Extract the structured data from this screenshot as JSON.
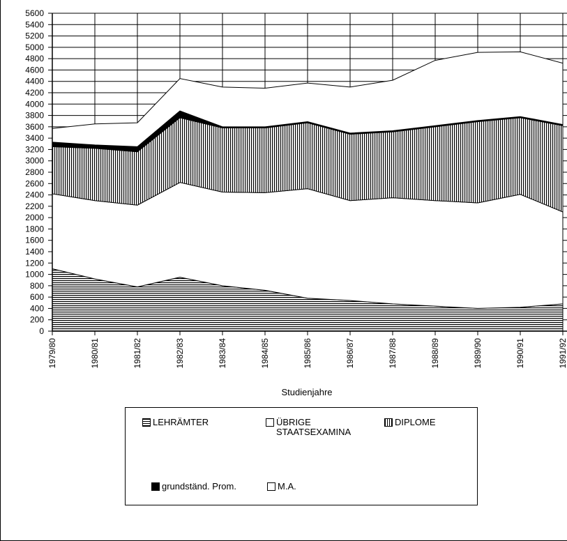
{
  "chart_data": {
    "type": "area",
    "stacked": true,
    "categories": [
      "1979/80",
      "1980/81",
      "1981/82",
      "1982/83",
      "1983/84",
      "1984/85",
      "1985/86",
      "1986/87",
      "1987/88",
      "1988/89",
      "1989/90",
      "1990/91",
      "1991/92"
    ],
    "series": [
      {
        "name": "LEHRÄMTER",
        "pattern": "horizontal-stripes",
        "values": [
          1100,
          920,
          780,
          950,
          800,
          720,
          580,
          540,
          480,
          440,
          400,
          420,
          480
        ]
      },
      {
        "name": "ÜBRIGE STAATSEXAMINA",
        "pattern": "white",
        "values": [
          1320,
          1380,
          1440,
          1670,
          1650,
          1720,
          1930,
          1760,
          1870,
          1860,
          1860,
          1990,
          1620
        ]
      },
      {
        "name": "DIPLOME",
        "pattern": "vertical-stripes",
        "values": [
          830,
          920,
          940,
          1140,
          1130,
          1140,
          1160,
          1170,
          1160,
          1300,
          1430,
          1350,
          1520
        ]
      },
      {
        "name": "grundständ. Prom.",
        "pattern": "black",
        "values": [
          80,
          60,
          90,
          120,
          20,
          20,
          20,
          20,
          20,
          20,
          20,
          20,
          20
        ]
      },
      {
        "name": "M.A.",
        "pattern": "white",
        "values": [
          240,
          370,
          420,
          570,
          700,
          680,
          680,
          810,
          890,
          1150,
          1200,
          1140,
          1080
        ]
      }
    ],
    "xlabel": "Studienjahre",
    "ylabel": "",
    "ylim": [
      0,
      5600
    ],
    "yticks": [
      0,
      200,
      400,
      600,
      800,
      1000,
      1200,
      1400,
      1600,
      1800,
      2000,
      2200,
      2400,
      2600,
      2800,
      3000,
      3200,
      3400,
      3600,
      3800,
      4000,
      4200,
      4400,
      4600,
      4800,
      5000,
      5200,
      5400,
      5600
    ],
    "tick_labels_visible": [
      "1979/80",
      "1980/81",
      "1981/82",
      "1982/83",
      "1983/84",
      "1984/85",
      "1985/86",
      "1986/87",
      "1987/88",
      "1988/89",
      "1989/90",
      "1990/91",
      "1991/92"
    ],
    "grid": true,
    "legend_position": "bottom-center"
  },
  "legend": {
    "items": [
      {
        "label": "LEHRÄMTER",
        "swatch": "horizontal-stripes"
      },
      {
        "label": "ÜBRIGE\nSTAATSEXAMINA",
        "swatch": "white"
      },
      {
        "label": "DIPLOME",
        "swatch": "vertical-stripes"
      },
      {
        "label": "grundständ. Prom.",
        "swatch": "black"
      },
      {
        "label": "M.A.",
        "swatch": "white"
      }
    ]
  },
  "colors": {
    "ink": "#000000",
    "background": "#ffffff"
  }
}
